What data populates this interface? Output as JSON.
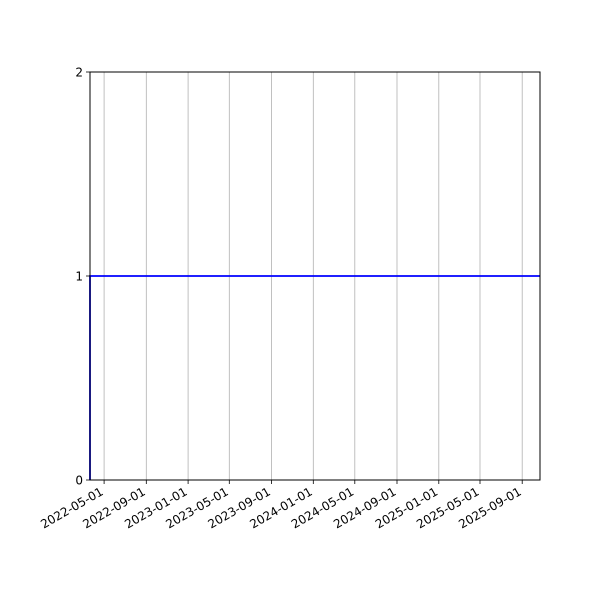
{
  "chart_data": {
    "type": "line",
    "title": "",
    "xlabel": "",
    "ylabel": "",
    "x_axis_type": "date",
    "xlim": [
      "2022-03-21",
      "2025-10-23"
    ],
    "ylim": [
      0,
      2
    ],
    "x_ticks": [
      "2022-05-01",
      "2022-09-01",
      "2023-01-01",
      "2023-05-01",
      "2023-09-01",
      "2024-01-01",
      "2024-05-01",
      "2024-09-01",
      "2025-01-01",
      "2025-05-01",
      "2025-09-01"
    ],
    "y_ticks": [
      0,
      1,
      2
    ],
    "grid": "vertical (x-axis only)",
    "series": [
      {
        "color": "#0000ff",
        "x": [
          "2022-03-21",
          "2022-03-21",
          "2025-10-23"
        ],
        "y": [
          0,
          1,
          1
        ]
      }
    ]
  }
}
